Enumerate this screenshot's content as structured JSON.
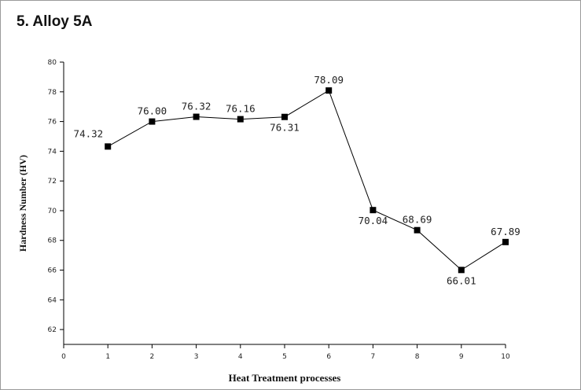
{
  "chart_data": {
    "type": "line",
    "title": "5. Alloy 5A",
    "xlabel": "Heat Treatment processes",
    "ylabel": "Hardness Number (HV)",
    "xlim": [
      0,
      10
    ],
    "ylim": [
      61,
      80
    ],
    "xticks": [
      0,
      1,
      2,
      3,
      4,
      5,
      6,
      7,
      8,
      9,
      10
    ],
    "yticks": [
      62,
      64,
      66,
      68,
      70,
      72,
      74,
      76,
      78,
      80
    ],
    "grid": false,
    "series": [
      {
        "x": [
          1,
          2,
          3,
          4,
          5,
          6,
          7,
          8,
          9,
          10
        ],
        "values": [
          74.32,
          76.0,
          76.32,
          76.16,
          76.31,
          78.09,
          70.04,
          68.69,
          66.01,
          67.89
        ],
        "labels": [
          "74.32",
          "76.00",
          "76.32",
          "76.16",
          "76.31",
          "78.09",
          "70.04",
          "68.69",
          "66.01",
          "67.89"
        ],
        "label_position": [
          "left",
          "above",
          "above",
          "above",
          "below",
          "above",
          "below",
          "above",
          "below",
          "above"
        ],
        "marker": "square",
        "color": "#000000"
      }
    ]
  }
}
